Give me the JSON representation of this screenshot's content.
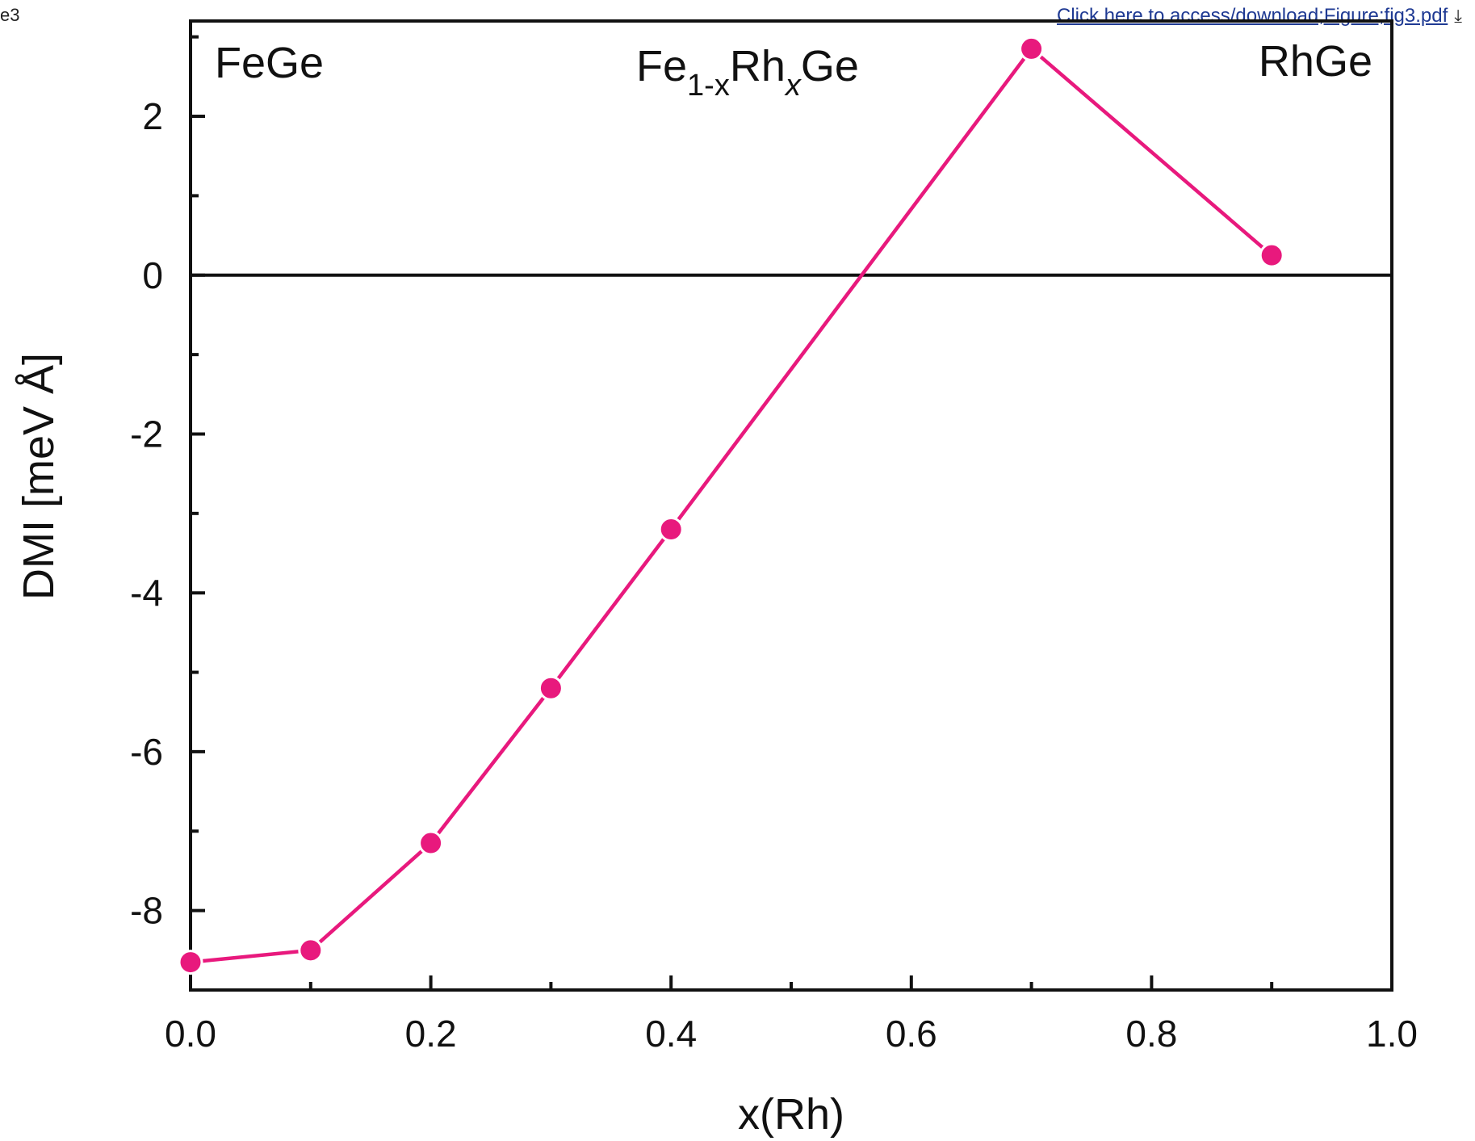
{
  "header": {
    "corner_label": "e3",
    "download_link": "Click here to access/download;Figure;fig3.pdf",
    "download_icon": "download-icon"
  },
  "chart_data": {
    "type": "line",
    "xlabel": "x(Rh)",
    "ylabel": "DMI  [meV Å]",
    "xlim": [
      0.0,
      1.0
    ],
    "ylim": [
      -9.0,
      3.2
    ],
    "x_ticks": [
      "0.0",
      "0.2",
      "0.4",
      "0.6",
      "0.8",
      "1.0"
    ],
    "y_ticks": [
      "2",
      "0",
      "-2",
      "-4",
      "-6",
      "-8"
    ],
    "grid": false,
    "zero_line": true,
    "series": [
      {
        "color": "#e8197d",
        "x": [
          0.0,
          0.1,
          0.2,
          0.3,
          0.4,
          0.7,
          0.9
        ],
        "y": [
          -8.65,
          -8.5,
          -7.15,
          -5.2,
          -3.2,
          2.85,
          0.25
        ]
      }
    ],
    "annotations": {
      "left": "FeGe",
      "right": "RhGe",
      "center": {
        "base1": "Fe",
        "sub1": "1-x",
        "base2": "Rh",
        "sub2": "x",
        "base3": "Ge"
      }
    }
  }
}
